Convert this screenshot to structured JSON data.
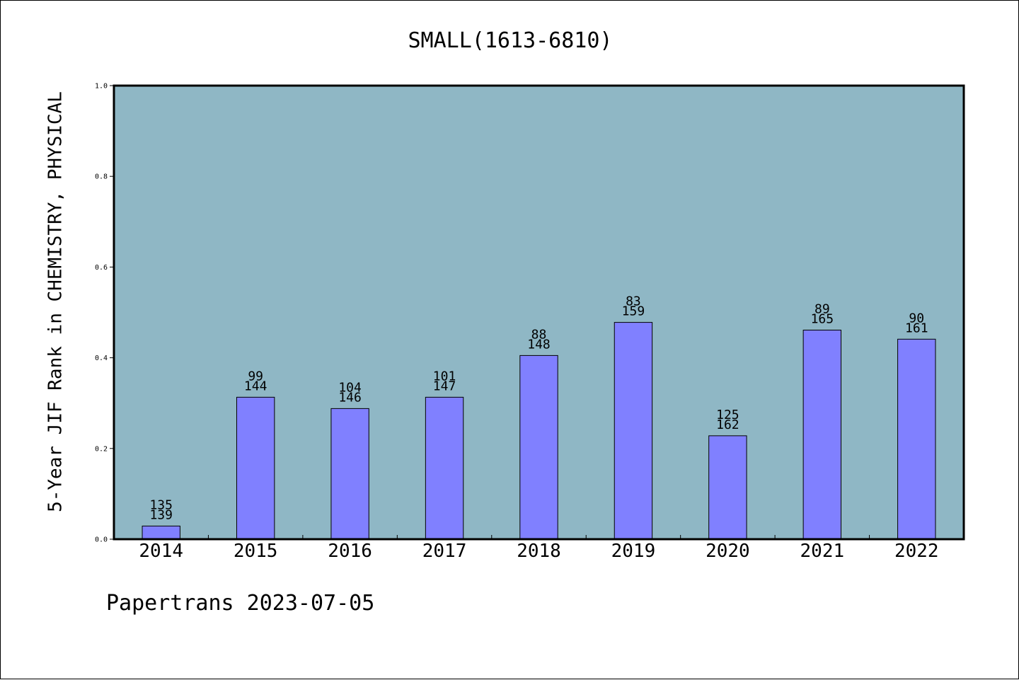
{
  "footer": {
    "text": "Papertrans 2023-07-05"
  },
  "colors": {
    "plot_bg": "#8fb7c5",
    "bar": "#8080ff",
    "text": "#000000"
  },
  "chart_data": {
    "type": "bar",
    "title": "SMALL(1613-6810)",
    "xlabel": "",
    "ylabel": "5-Year JIF Rank in CHEMISTRY, PHYSICAL",
    "ylim": [
      0,
      1.0
    ],
    "yticks": [
      "0.0",
      "0.2",
      "0.4",
      "0.6",
      "0.8",
      "1.0"
    ],
    "grid": false,
    "categories": [
      "2014",
      "2015",
      "2016",
      "2017",
      "2018",
      "2019",
      "2020",
      "2021",
      "2022"
    ],
    "values": [
      0.029,
      0.313,
      0.288,
      0.313,
      0.405,
      0.478,
      0.228,
      0.461,
      0.441
    ],
    "ranks": [
      "135",
      "99",
      "104",
      "101",
      "88",
      "83",
      "125",
      "89",
      "90"
    ],
    "totals": [
      "139",
      "144",
      "146",
      "147",
      "148",
      "159",
      "162",
      "165",
      "161"
    ]
  }
}
